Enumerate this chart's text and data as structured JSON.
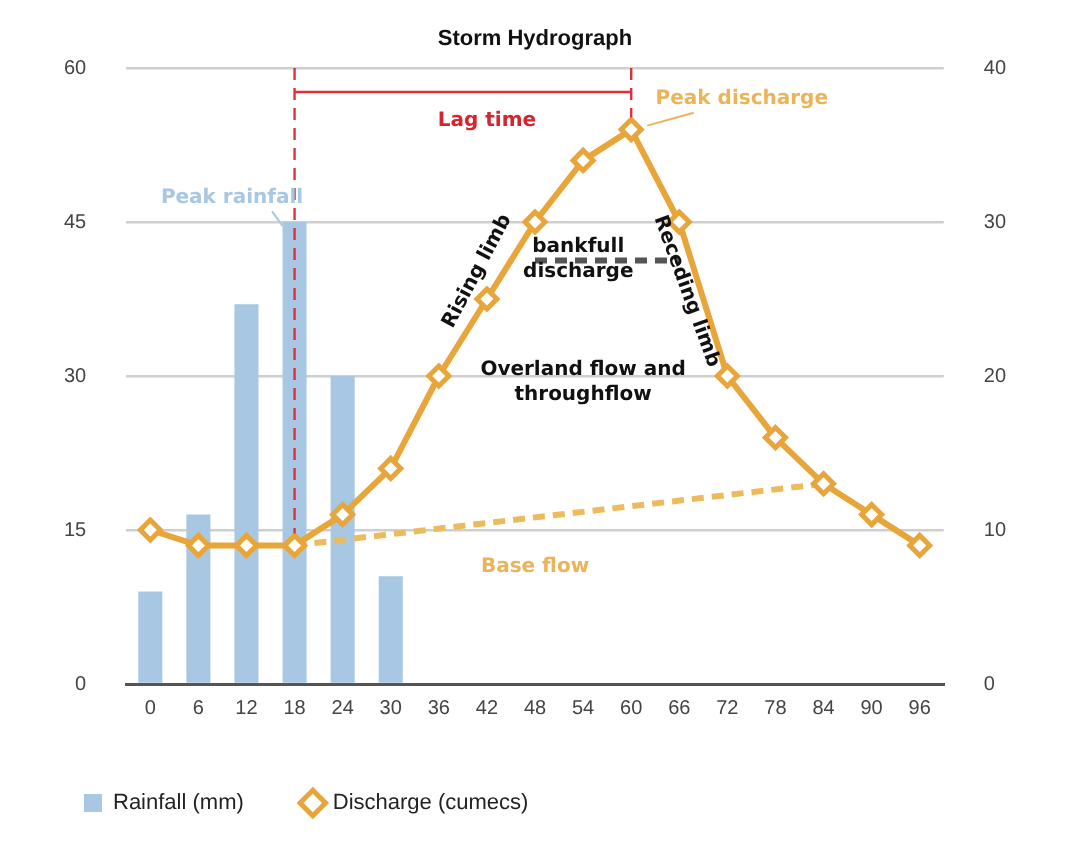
{
  "chart_data": {
    "type": "bar",
    "title": "Storm Hydrograph",
    "categories": [
      "0",
      "6",
      "12",
      "18",
      "24",
      "30",
      "36",
      "42",
      "48",
      "54",
      "60",
      "66",
      "72",
      "78",
      "84",
      "90",
      "96"
    ],
    "series": [
      {
        "name": "Rainfall (mm)",
        "color": "#a7c7e2",
        "values": [
          9,
          16.5,
          37,
          45,
          30,
          10.5,
          null,
          null,
          null,
          null,
          null,
          null,
          null,
          null,
          null,
          null,
          null
        ]
      },
      {
        "name": "Discharge (cumecs)",
        "type": "line",
        "axis": "y2",
        "color": "#e8a53a",
        "marker": "diamond",
        "values": [
          10,
          9,
          9,
          9,
          11,
          14,
          20,
          25,
          30,
          34,
          36,
          30,
          20,
          16,
          13,
          11,
          9
        ]
      },
      {
        "type": "line",
        "axis": "y2",
        "color": "#ecbb5e",
        "marker": "none",
        "line_style": "dashed",
        "values": [
          null,
          null,
          null,
          9,
          null,
          null,
          null,
          null,
          null,
          null,
          null,
          null,
          null,
          null,
          13,
          null,
          null
        ]
      },
      {
        "type": "line",
        "axis": "y2",
        "color": "#555555",
        "marker": "none",
        "line_style": "dashed",
        "values": [
          null,
          null,
          null,
          null,
          null,
          null,
          null,
          null,
          27.5,
          null,
          null,
          27.5,
          null,
          null,
          null,
          null,
          null
        ]
      }
    ],
    "ylim": [
      0,
      60
    ],
    "yticks": [
      0,
      15,
      30,
      45,
      60
    ],
    "y2lim": [
      0,
      40
    ],
    "y2ticks": [
      0,
      10,
      20,
      30,
      40
    ],
    "ref_lines": [
      {
        "axis": "x",
        "value": "18",
        "color": "#e0303a",
        "line_style": "dashed"
      },
      {
        "axis": "x",
        "value": "60",
        "color": "#e0303a",
        "line_style": "dashed"
      }
    ],
    "annotations": [
      "Lag time",
      "Peak rainfall",
      "Peak discharge",
      "Rising limb",
      "bankfull discharge",
      "Receding limb",
      "Overland flow and throughflow",
      "Base flow"
    ],
    "grid": "y",
    "legend": "bottom left"
  }
}
